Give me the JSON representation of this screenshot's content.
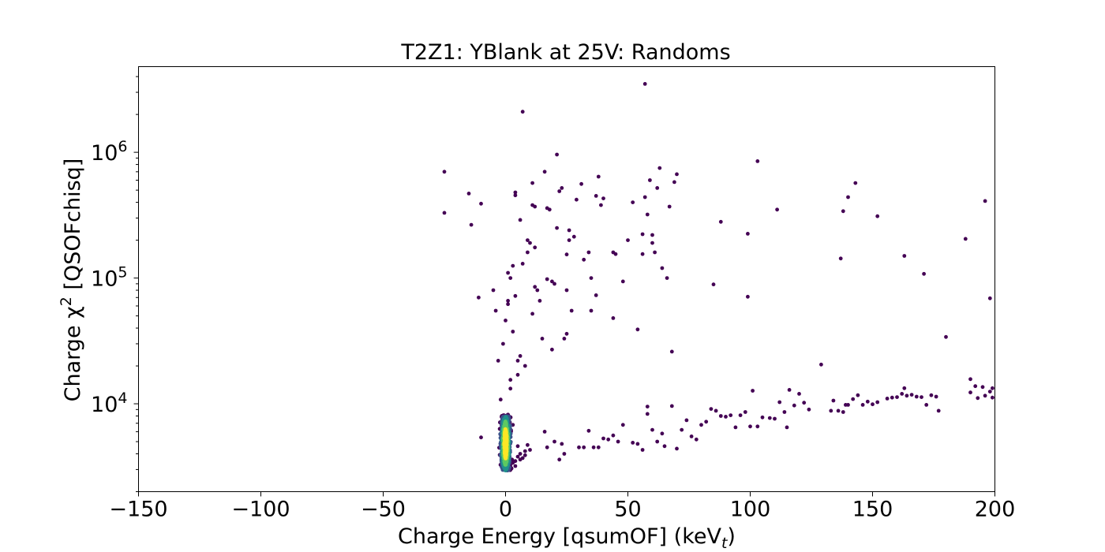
{
  "chart_data": {
    "type": "scatter",
    "title": "T2Z1: YBlank at 25V: Randoms",
    "xlabel": "Charge Energy [qsumOF] (keV",
    "xlabel_sub": "t",
    "xlabel_end": ")",
    "ylabel": "Charge χ",
    "ylabel_sup": "2",
    "ylabel_end": " [QSOFchisq]",
    "xlim": [
      -150,
      200
    ],
    "ylim": [
      2000,
      4800000
    ],
    "yscale": "log",
    "grid": false,
    "x_ticks": [
      -150,
      -100,
      -50,
      0,
      50,
      100,
      150,
      200
    ],
    "x_tick_labels": [
      "−150",
      "−100",
      "−50",
      "0",
      "50",
      "100",
      "150",
      "200"
    ],
    "y_ticks": [
      10000,
      100000,
      1000000
    ],
    "y_tick_labels": [
      {
        "base": "10",
        "exp": "4"
      },
      {
        "base": "10",
        "exp": "5"
      },
      {
        "base": "10",
        "exp": "6"
      }
    ],
    "colormap": [
      "#440154",
      "#3b528b",
      "#21918c",
      "#5ec962",
      "#fde725"
    ],
    "dense_cluster": {
      "x_center": 0,
      "x_sigma": 0.9,
      "y_log10_min": 3.47,
      "y_log10_max": 3.9,
      "count": 900
    },
    "points": [
      [
        -25,
        700000
      ],
      [
        -25,
        330000
      ],
      [
        -15,
        470000
      ],
      [
        -14,
        265000
      ],
      [
        -10,
        390000
      ],
      [
        -11,
        70000
      ],
      [
        -10,
        5400
      ],
      [
        -5,
        80000
      ],
      [
        -4,
        55000
      ],
      [
        -3,
        22000
      ],
      [
        -2,
        10800
      ],
      [
        -1,
        30000
      ],
      [
        0,
        46000
      ],
      [
        1,
        66000
      ],
      [
        1,
        62000
      ],
      [
        1,
        110000
      ],
      [
        2,
        15500
      ],
      [
        2,
        13200
      ],
      [
        2,
        100000
      ],
      [
        3,
        37500
      ],
      [
        3,
        125000
      ],
      [
        4,
        480000
      ],
      [
        4,
        455000
      ],
      [
        4,
        72000
      ],
      [
        5,
        17000
      ],
      [
        5,
        22000
      ],
      [
        6,
        24000
      ],
      [
        6,
        290000
      ],
      [
        7,
        2100000
      ],
      [
        7,
        130000
      ],
      [
        8,
        20000
      ],
      [
        9,
        200000
      ],
      [
        9,
        160000
      ],
      [
        10,
        190000
      ],
      [
        11,
        52000
      ],
      [
        11,
        380000
      ],
      [
        11,
        570000
      ],
      [
        12,
        370000
      ],
      [
        12,
        85000
      ],
      [
        12,
        175000
      ],
      [
        13,
        80000
      ],
      [
        14,
        66000
      ],
      [
        15,
        33000
      ],
      [
        16,
        700000
      ],
      [
        17,
        360000
      ],
      [
        18,
        350000
      ],
      [
        17,
        98000
      ],
      [
        19,
        94000
      ],
      [
        19,
        27000
      ],
      [
        20,
        90000
      ],
      [
        21,
        250000
      ],
      [
        21,
        960000
      ],
      [
        22,
        490000
      ],
      [
        23,
        520000
      ],
      [
        24,
        33000
      ],
      [
        25,
        36000
      ],
      [
        25,
        80000
      ],
      [
        26,
        240000
      ],
      [
        26,
        200000
      ],
      [
        25,
        154000
      ],
      [
        27,
        55000
      ],
      [
        28,
        213000
      ],
      [
        29,
        420000
      ],
      [
        31,
        560000
      ],
      [
        32,
        140000
      ],
      [
        34,
        160000
      ],
      [
        35,
        100000
      ],
      [
        35,
        55000
      ],
      [
        37,
        73000
      ],
      [
        37,
        450000
      ],
      [
        38,
        640000
      ],
      [
        39,
        380000
      ],
      [
        40,
        430000
      ],
      [
        44,
        48000
      ],
      [
        44,
        160000
      ],
      [
        45,
        155000
      ],
      [
        48,
        94000
      ],
      [
        50,
        200000
      ],
      [
        52,
        400000
      ],
      [
        54,
        39000
      ],
      [
        56,
        223000
      ],
      [
        56,
        155000
      ],
      [
        57,
        440000
      ],
      [
        57,
        3500000
      ],
      [
        58,
        320000
      ],
      [
        59,
        600000
      ],
      [
        60,
        190000
      ],
      [
        60,
        220000
      ],
      [
        61,
        160000
      ],
      [
        62,
        520000
      ],
      [
        63,
        750000
      ],
      [
        64,
        120000
      ],
      [
        66,
        100000
      ],
      [
        67,
        370000
      ],
      [
        68,
        26000
      ],
      [
        69,
        580000
      ],
      [
        70,
        670000
      ],
      [
        85,
        89000
      ],
      [
        88,
        280000
      ],
      [
        99,
        225000
      ],
      [
        99,
        71000
      ],
      [
        103,
        850000
      ],
      [
        111,
        350000
      ],
      [
        137,
        143000
      ],
      [
        138,
        340000
      ],
      [
        140,
        440000
      ],
      [
        143,
        570000
      ],
      [
        152,
        310000
      ],
      [
        163,
        150000
      ],
      [
        171,
        108000
      ],
      [
        180,
        34000
      ],
      [
        188,
        205000
      ],
      [
        196,
        410000
      ],
      [
        198,
        69000
      ],
      [
        16,
        6000
      ],
      [
        17,
        4500
      ],
      [
        20,
        5000
      ],
      [
        22,
        3600
      ],
      [
        23,
        4800
      ],
      [
        24,
        4000
      ],
      [
        30,
        4500
      ],
      [
        32,
        4500
      ],
      [
        34,
        6100
      ],
      [
        36,
        4500
      ],
      [
        38,
        4500
      ],
      [
        40,
        5300
      ],
      [
        42,
        5200
      ],
      [
        44,
        5600
      ],
      [
        46,
        5000
      ],
      [
        48,
        6800
      ],
      [
        52,
        4900
      ],
      [
        54,
        4800
      ],
      [
        56,
        4300
      ],
      [
        58,
        9500
      ],
      [
        58,
        8300
      ],
      [
        60,
        6200
      ],
      [
        62,
        5000
      ],
      [
        64,
        5800
      ],
      [
        65,
        4600
      ],
      [
        68,
        9600
      ],
      [
        70,
        4400
      ],
      [
        72,
        6200
      ],
      [
        74,
        7400
      ],
      [
        76,
        5500
      ],
      [
        78,
        5200
      ],
      [
        80,
        6800
      ],
      [
        82,
        7200
      ],
      [
        84,
        9100
      ],
      [
        86,
        8800
      ],
      [
        88,
        8000
      ],
      [
        90,
        7900
      ],
      [
        92,
        8100
      ],
      [
        94,
        6500
      ],
      [
        96,
        8100
      ],
      [
        98,
        8600
      ],
      [
        100,
        6600
      ],
      [
        101,
        12700
      ],
      [
        103,
        6600
      ],
      [
        105,
        7800
      ],
      [
        108,
        7700
      ],
      [
        110,
        7600
      ],
      [
        112,
        10300
      ],
      [
        114,
        8600
      ],
      [
        115,
        6500
      ],
      [
        116,
        12900
      ],
      [
        118,
        9700
      ],
      [
        120,
        12000
      ],
      [
        122,
        10200
      ],
      [
        124,
        9000
      ],
      [
        129,
        20500
      ],
      [
        133,
        8800
      ],
      [
        134,
        10600
      ],
      [
        136,
        8800
      ],
      [
        138,
        8600
      ],
      [
        139,
        9800
      ],
      [
        140,
        9800
      ],
      [
        142,
        10900
      ],
      [
        144,
        11700
      ],
      [
        146,
        9800
      ],
      [
        148,
        10400
      ],
      [
        150,
        9900
      ],
      [
        152,
        10300
      ],
      [
        156,
        11000
      ],
      [
        158,
        11200
      ],
      [
        160,
        11300
      ],
      [
        162,
        12000
      ],
      [
        163,
        13300
      ],
      [
        164,
        11600
      ],
      [
        166,
        11800
      ],
      [
        168,
        11400
      ],
      [
        170,
        11300
      ],
      [
        172,
        9800
      ],
      [
        174,
        11700
      ],
      [
        176,
        11400
      ],
      [
        177,
        8800
      ],
      [
        190,
        15700
      ],
      [
        190,
        12300
      ],
      [
        192,
        13800
      ],
      [
        193,
        11100
      ],
      [
        195,
        13600
      ],
      [
        196,
        11600
      ],
      [
        198,
        12500
      ],
      [
        199,
        13300
      ],
      [
        199,
        11200
      ],
      [
        2,
        3300
      ],
      [
        3,
        3400
      ],
      [
        4,
        3200
      ],
      [
        5,
        3800
      ],
      [
        6,
        4000
      ],
      [
        7,
        3700
      ],
      [
        8,
        4200
      ],
      [
        9,
        4700
      ],
      [
        3,
        6800
      ],
      [
        2,
        7800
      ],
      [
        1,
        8200
      ],
      [
        4,
        3500
      ],
      [
        6,
        3600
      ],
      [
        8,
        3900
      ],
      [
        5,
        4600
      ],
      [
        10,
        4300
      ]
    ]
  }
}
